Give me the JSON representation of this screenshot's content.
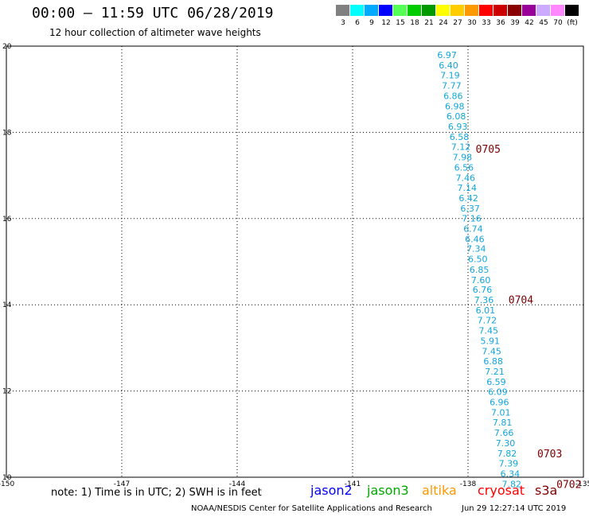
{
  "header": {
    "title": "00:00 – 11:59 UTC 06/28/2019",
    "subtitle": "12 hour collection of altimeter wave heights"
  },
  "color_scale": {
    "colors": [
      "#808080",
      "#00ffff",
      "#00aaff",
      "#0000ff",
      "#55ff55",
      "#00cc00",
      "#009900",
      "#ffff00",
      "#ffcc00",
      "#ff9900",
      "#ff0000",
      "#cc0000",
      "#880000",
      "#990099",
      "#ccaaff",
      "#ff88ff",
      "#000000"
    ],
    "labels": [
      "3",
      "6",
      "9",
      "12",
      "15",
      "18",
      "21",
      "24",
      "27",
      "30",
      "33",
      "36",
      "39",
      "42",
      "45",
      "70",
      "(ft)"
    ]
  },
  "chart_data": {
    "type": "scatter",
    "xlim": [
      -150,
      -135
    ],
    "ylim": [
      10,
      20
    ],
    "x_ticks": [
      "-150",
      "-147",
      "-144",
      "-141",
      "-138",
      "-135"
    ],
    "y_ticks": [
      "10",
      "12",
      "14",
      "16",
      "18",
      "20"
    ],
    "grid": true,
    "series": [
      {
        "name": "jason2",
        "color": "#11a6dd",
        "points": [
          {
            "x": -138.8,
            "y": 19.8,
            "label": "6.97"
          },
          {
            "x": -138.76,
            "y": 19.56,
            "label": "6.40"
          },
          {
            "x": -138.72,
            "y": 19.33,
            "label": "7.19"
          },
          {
            "x": -138.68,
            "y": 19.09,
            "label": "7.77"
          },
          {
            "x": -138.64,
            "y": 18.85,
            "label": "6.86"
          },
          {
            "x": -138.6,
            "y": 18.61,
            "label": "6.98"
          },
          {
            "x": -138.56,
            "y": 18.38,
            "label": "6.08"
          },
          {
            "x": -138.52,
            "y": 18.14,
            "label": "6.93"
          },
          {
            "x": -138.48,
            "y": 17.9,
            "label": "6.58"
          },
          {
            "x": -138.44,
            "y": 17.67,
            "label": "7.12"
          },
          {
            "x": -138.4,
            "y": 17.43,
            "label": "7.98"
          },
          {
            "x": -138.36,
            "y": 17.19,
            "label": "6.56"
          },
          {
            "x": -138.32,
            "y": 16.95,
            "label": "7.46"
          },
          {
            "x": -138.28,
            "y": 16.72,
            "label": "7.14"
          },
          {
            "x": -138.24,
            "y": 16.48,
            "label": "6.42"
          },
          {
            "x": -138.2,
            "y": 16.24,
            "label": "6.37"
          },
          {
            "x": -138.16,
            "y": 16.01,
            "label": "7.16"
          },
          {
            "x": -138.12,
            "y": 15.77,
            "label": "6.74"
          },
          {
            "x": -138.08,
            "y": 15.53,
            "label": "6.46"
          },
          {
            "x": -138.04,
            "y": 15.3,
            "label": "7.34"
          },
          {
            "x": -138.0,
            "y": 15.06,
            "label": "6.50"
          },
          {
            "x": -137.96,
            "y": 14.82,
            "label": "6.85"
          },
          {
            "x": -137.92,
            "y": 14.58,
            "label": "7.60"
          },
          {
            "x": -137.88,
            "y": 14.35,
            "label": "6.76"
          },
          {
            "x": -137.84,
            "y": 14.11,
            "label": "7.36"
          },
          {
            "x": -137.8,
            "y": 13.87,
            "label": "6.01"
          },
          {
            "x": -137.76,
            "y": 13.64,
            "label": "7.72"
          },
          {
            "x": -137.72,
            "y": 13.4,
            "label": "7.45"
          },
          {
            "x": -137.68,
            "y": 13.16,
            "label": "5.91"
          },
          {
            "x": -137.64,
            "y": 12.92,
            "label": "7.45"
          },
          {
            "x": -137.6,
            "y": 12.69,
            "label": "6.88"
          },
          {
            "x": -137.56,
            "y": 12.45,
            "label": "7.21"
          },
          {
            "x": -137.52,
            "y": 12.21,
            "label": "6.59"
          },
          {
            "x": -137.48,
            "y": 11.98,
            "label": "6.09"
          },
          {
            "x": -137.44,
            "y": 11.74,
            "label": "6.96"
          },
          {
            "x": -137.4,
            "y": 11.5,
            "label": "7.01"
          },
          {
            "x": -137.36,
            "y": 11.27,
            "label": "7.81"
          },
          {
            "x": -137.32,
            "y": 11.03,
            "label": "7.66"
          },
          {
            "x": -137.28,
            "y": 10.79,
            "label": "7.30"
          },
          {
            "x": -137.24,
            "y": 10.55,
            "label": "7.82"
          },
          {
            "x": -137.2,
            "y": 10.32,
            "label": "7.39"
          },
          {
            "x": -137.16,
            "y": 10.08,
            "label": "6.34"
          },
          {
            "x": -137.12,
            "y": 9.84,
            "label": "7.82"
          }
        ]
      }
    ],
    "time_annotations": [
      {
        "x": -137.8,
        "y": 17.62,
        "label": "0705",
        "color": "#7a0000"
      },
      {
        "x": -136.95,
        "y": 14.12,
        "label": "0704",
        "color": "#7a0000"
      },
      {
        "x": -136.2,
        "y": 10.55,
        "label": "0703",
        "color": "#7a0000"
      },
      {
        "x": -135.7,
        "y": 9.84,
        "label": "0702",
        "color": "#7a0000"
      }
    ]
  },
  "footer": {
    "note": "note: 1) Time is in UTC; 2) SWH is in feet",
    "satellites": [
      {
        "name": "jason2",
        "color": "#0000ff"
      },
      {
        "name": "jason3",
        "color": "#00aa00"
      },
      {
        "name": "altika",
        "color": "#ff9900"
      },
      {
        "name": "cryosat",
        "color": "#ff0000"
      },
      {
        "name": "s3a",
        "color": "#880000"
      }
    ],
    "credit": "NOAA/NESDIS Center for Satellite Applications and Research",
    "timestamp": "Jun 29 12:27:14 UTC 2019"
  }
}
